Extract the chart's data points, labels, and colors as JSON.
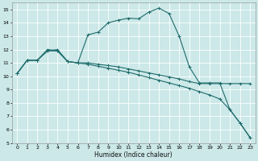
{
  "xlabel": "Humidex (Indice chaleur)",
  "ylabel": "",
  "bg_color": "#cce8e8",
  "grid_color": "#ffffff",
  "line_color": "#1e6b6b",
  "xlim": [
    -0.5,
    23.5
  ],
  "ylim": [
    5,
    15.5
  ],
  "xticks": [
    0,
    1,
    2,
    3,
    4,
    5,
    6,
    7,
    8,
    9,
    10,
    11,
    12,
    13,
    14,
    15,
    16,
    17,
    18,
    19,
    20,
    21,
    22,
    23
  ],
  "yticks": [
    5,
    6,
    7,
    8,
    9,
    10,
    11,
    12,
    13,
    14,
    15
  ],
  "line1_x": [
    0,
    1,
    2,
    3,
    4,
    5,
    6,
    7,
    8,
    9,
    10,
    11,
    12,
    13,
    14,
    15,
    16,
    17,
    18,
    19,
    20,
    21,
    22,
    23
  ],
  "line1_y": [
    10.2,
    11.2,
    11.2,
    11.9,
    12.0,
    11.1,
    11.0,
    13.1,
    13.3,
    14.0,
    14.2,
    14.35,
    14.3,
    14.8,
    15.1,
    14.7,
    13.0,
    10.7,
    9.5,
    9.5,
    9.5,
    7.5,
    6.5,
    5.4
  ],
  "line2_x": [
    0,
    1,
    2,
    3,
    4,
    5,
    6,
    7,
    8,
    9,
    10,
    11,
    12,
    13,
    14,
    15,
    16,
    17,
    18,
    19,
    20,
    21,
    22,
    23
  ],
  "line2_y": [
    10.2,
    11.2,
    11.2,
    12.0,
    11.9,
    11.1,
    11.0,
    11.0,
    10.9,
    10.8,
    10.7,
    10.55,
    10.4,
    10.25,
    10.1,
    9.95,
    9.8,
    9.6,
    9.45,
    9.45,
    9.45,
    9.45,
    9.45,
    9.45
  ],
  "line3_x": [
    0,
    1,
    2,
    3,
    4,
    5,
    6,
    7,
    8,
    9,
    10,
    11,
    12,
    13,
    14,
    15,
    16,
    17,
    18,
    19,
    20,
    21,
    22,
    23
  ],
  "line3_y": [
    10.2,
    11.2,
    11.2,
    11.9,
    11.9,
    11.1,
    11.0,
    10.9,
    10.75,
    10.6,
    10.45,
    10.3,
    10.1,
    9.9,
    9.7,
    9.5,
    9.3,
    9.1,
    8.85,
    8.6,
    8.3,
    7.5,
    6.5,
    5.4
  ]
}
